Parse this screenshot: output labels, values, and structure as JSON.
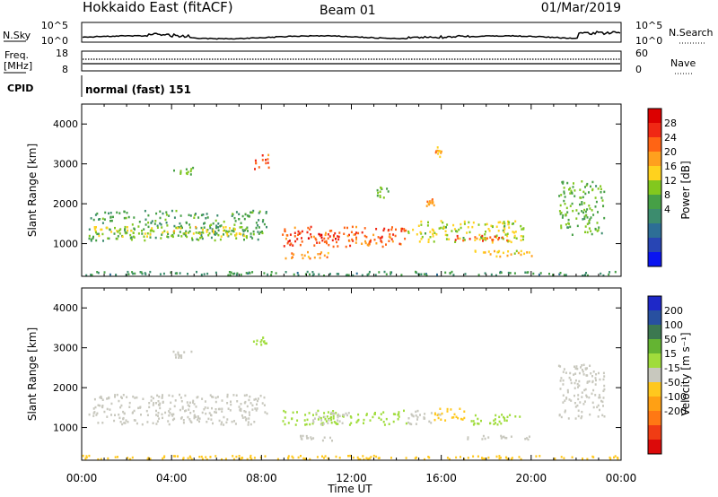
{
  "header": {
    "station": "Hokkaido East (fitACF)",
    "beam": "Beam 01",
    "date": "01/Mar/2019"
  },
  "strips": {
    "nsky_label": "N.Sky",
    "nsky_ticks": [
      "10^5",
      "10^0"
    ],
    "nsearch_label": "N.Search",
    "nsearch_ticks": [
      "10^5",
      "10^0"
    ],
    "freq_label_line1": "Freq.",
    "freq_label_line2": "[MHz]",
    "freq_ticks": [
      "18",
      "8"
    ],
    "nave_label": "Nave",
    "nave_ticks": [
      "60",
      "0"
    ],
    "cpid_label": "CPID",
    "cpid_value": "normal (fast) 151"
  },
  "colors": {
    "power_scale": [
      "#0a14f0",
      "#2845b4",
      "#2d6e96",
      "#3c8c6e",
      "#46a046",
      "#82c81e",
      "#ffd21e",
      "#ffa01e",
      "#ff6414",
      "#f02814",
      "#dc0000"
    ],
    "velocity_scale": [
      "#1e28c8",
      "#2850a0",
      "#3c7850",
      "#64b432",
      "#a0dc3c",
      "#c8c8be",
      "#ffc81e",
      "#ffa014",
      "#ff7814",
      "#f03c14",
      "#dc0a0a"
    ]
  },
  "chart_data": [
    {
      "type": "heatmap",
      "panel": "power",
      "ylabel": "Slant Range [km]",
      "yticks": [
        "1000",
        "2000",
        "3000",
        "4000"
      ],
      "ylim": [
        180,
        4500
      ],
      "xlim": [
        0,
        24
      ],
      "xtick_labels": [
        "00:00",
        "04:00",
        "08:00",
        "12:00",
        "16:00",
        "20:00",
        "00:00"
      ],
      "colorbar": {
        "label": "Power [dB]",
        "ticks": [
          "4",
          "8",
          "12",
          "16",
          "20",
          "24",
          "28"
        ],
        "range": [
          0,
          30
        ]
      },
      "regions": [
        {
          "t0": 0.3,
          "t1": 8.3,
          "r0": 1050,
          "r1": 1850,
          "value": 12
        },
        {
          "t0": 0.5,
          "t1": 7.5,
          "r0": 1150,
          "r1": 1450,
          "value": 17
        },
        {
          "t0": 8.9,
          "t1": 14.5,
          "r0": 900,
          "r1": 1450,
          "value": 24
        },
        {
          "t0": 9.2,
          "t1": 11.5,
          "r0": 1050,
          "r1": 1300,
          "value": 28
        },
        {
          "t0": 14.5,
          "t1": 19.8,
          "r0": 1000,
          "r1": 1600,
          "value": 16
        },
        {
          "t0": 16.5,
          "t1": 19.0,
          "r0": 1050,
          "r1": 1250,
          "value": 24
        },
        {
          "t0": 9.0,
          "t1": 11.2,
          "r0": 600,
          "r1": 820,
          "value": 22
        },
        {
          "t0": 17.0,
          "t1": 20.2,
          "r0": 650,
          "r1": 850,
          "value": 19
        },
        {
          "t0": 21.2,
          "t1": 23.3,
          "r0": 1200,
          "r1": 2600,
          "value": 13
        },
        {
          "t0": 4.0,
          "t1": 5.0,
          "r0": 2700,
          "r1": 2950,
          "value": 14
        },
        {
          "t0": 7.6,
          "t1": 8.4,
          "r0": 2850,
          "r1": 3250,
          "value": 24
        },
        {
          "t0": 15.3,
          "t1": 15.9,
          "r0": 1900,
          "r1": 2200,
          "value": 22
        },
        {
          "t0": 15.7,
          "t1": 16.1,
          "r0": 3150,
          "r1": 3450,
          "value": 20
        },
        {
          "t0": 13.1,
          "t1": 13.7,
          "r0": 2100,
          "r1": 2450,
          "value": 14
        },
        {
          "t0": 0.0,
          "t1": 24.0,
          "r0": 180,
          "r1": 320,
          "value": 10
        }
      ]
    },
    {
      "type": "heatmap",
      "panel": "velocity",
      "ylabel": "Slant Range [km]",
      "yticks": [
        "1000",
        "2000",
        "3000",
        "4000"
      ],
      "ylim": [
        180,
        4500
      ],
      "xlim": [
        0,
        24
      ],
      "xtick_labels": [
        "00:00",
        "04:00",
        "08:00",
        "12:00",
        "16:00",
        "20:00",
        "00:00"
      ],
      "xlabel": "Time UT",
      "colorbar": {
        "label": "Velocity [m s⁻¹]",
        "ticks": [
          "200",
          "100",
          "50",
          "15",
          "-15",
          "-50",
          "-100",
          "-200"
        ],
        "range": [
          -250,
          250
        ]
      },
      "regions": [
        {
          "t0": 0.3,
          "t1": 8.3,
          "r0": 1050,
          "r1": 1850,
          "value": 0
        },
        {
          "t0": 8.9,
          "t1": 14.5,
          "r0": 1050,
          "r1": 1450,
          "value": 30
        },
        {
          "t0": 10.2,
          "t1": 12.0,
          "r0": 1050,
          "r1": 1400,
          "value": 0
        },
        {
          "t0": 14.5,
          "t1": 16.0,
          "r0": 1050,
          "r1": 1450,
          "value": 0
        },
        {
          "t0": 15.6,
          "t1": 17.2,
          "r0": 1150,
          "r1": 1500,
          "value": -40
        },
        {
          "t0": 17.2,
          "t1": 19.6,
          "r0": 1050,
          "r1": 1350,
          "value": 30
        },
        {
          "t0": 9.0,
          "t1": 11.2,
          "r0": 650,
          "r1": 820,
          "value": 0
        },
        {
          "t0": 17.0,
          "t1": 20.0,
          "r0": 680,
          "r1": 820,
          "value": 0
        },
        {
          "t0": 21.2,
          "t1": 23.3,
          "r0": 1200,
          "r1": 2600,
          "value": 0
        },
        {
          "t0": 7.6,
          "t1": 8.3,
          "r0": 3050,
          "r1": 3300,
          "value": 40
        },
        {
          "t0": 4.0,
          "t1": 5.0,
          "r0": 2700,
          "r1": 2950,
          "value": 0
        },
        {
          "t0": 0.0,
          "t1": 24.0,
          "r0": 180,
          "r1": 320,
          "value": -30
        }
      ]
    }
  ]
}
